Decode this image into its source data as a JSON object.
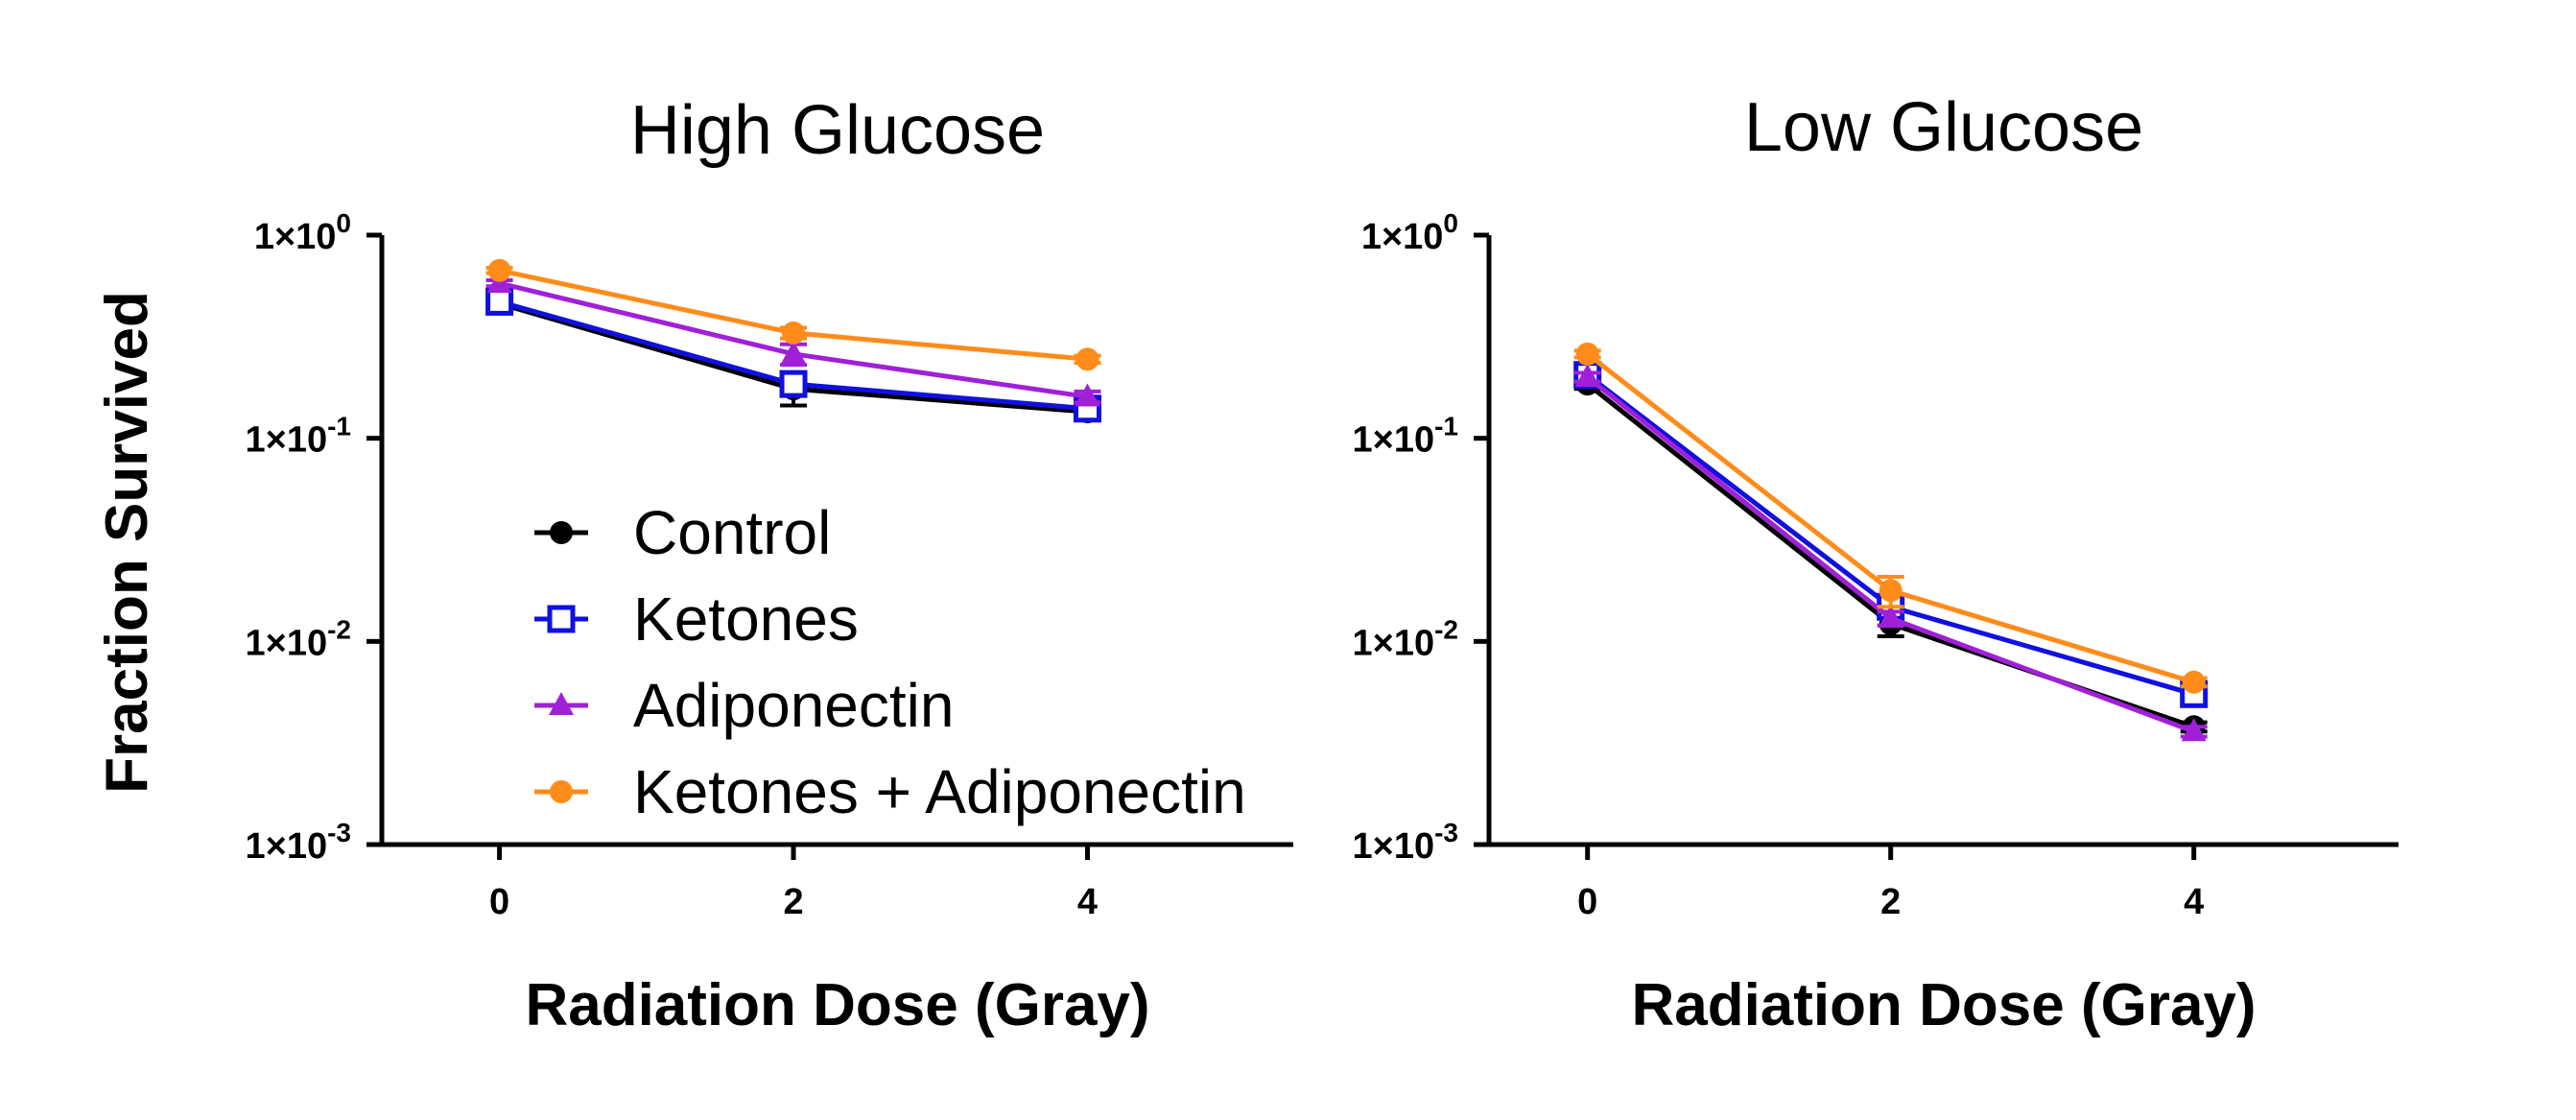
{
  "chart_data": [
    {
      "type": "line",
      "title": "High Glucose",
      "xlabel": "Radiation Dose  (Gray)",
      "ylabel": "Fraction Survived",
      "yscale": "log",
      "ylim": [
        0.001,
        1
      ],
      "xlim": [
        -0.8,
        5.4
      ],
      "x": [
        0,
        2,
        4
      ],
      "xticks": [
        0,
        2,
        4
      ],
      "ytick_labels": [
        {
          "base": "1×10",
          "exp": "0"
        },
        {
          "base": "1×10",
          "exp": "-1"
        },
        {
          "base": "1×10",
          "exp": "-2"
        },
        {
          "base": "1×10",
          "exp": "-3"
        }
      ],
      "ytick_values": [
        1,
        0.1,
        0.01,
        0.001
      ],
      "legend_placement": "inside-lower",
      "series": [
        {
          "name": "Control",
          "color": "#000000",
          "marker": "circle",
          "values": [
            0.46,
            0.175,
            0.135
          ],
          "err": [
            0.03,
            0.03,
            0.01
          ]
        },
        {
          "name": "Ketones",
          "color": "#1010e0",
          "marker": "open-square",
          "values": [
            0.47,
            0.185,
            0.14
          ],
          "err": [
            0.02,
            0.02,
            0.01
          ]
        },
        {
          "name": "Adiponectin",
          "color": "#a020d8",
          "marker": "triangle",
          "values": [
            0.58,
            0.26,
            0.16
          ],
          "err": [
            0.02,
            0.03,
            0.01
          ]
        },
        {
          "name": "Ketones + Adiponectin",
          "color": "#ff8c1a",
          "marker": "circle",
          "values": [
            0.67,
            0.33,
            0.245
          ],
          "err": [
            0.02,
            0.02,
            0.01
          ]
        }
      ]
    },
    {
      "type": "line",
      "title": "Low Glucose",
      "xlabel": "Radiation Dose  (Gray)",
      "ylabel": "",
      "yscale": "log",
      "ylim": [
        0.001,
        1
      ],
      "xlim": [
        -0.65,
        5.35
      ],
      "x": [
        0,
        2,
        4
      ],
      "xticks": [
        0,
        2,
        4
      ],
      "ytick_labels": [
        {
          "base": "1×10",
          "exp": "0"
        },
        {
          "base": "1×10",
          "exp": "-1"
        },
        {
          "base": "1×10",
          "exp": "-2"
        },
        {
          "base": "1×10",
          "exp": "-3"
        }
      ],
      "ytick_values": [
        1,
        0.1,
        0.01,
        0.001
      ],
      "series": [
        {
          "name": "Control",
          "color": "#000000",
          "marker": "circle",
          "values": [
            0.185,
            0.0122,
            0.0038
          ],
          "err": [
            0.01,
            0.0016,
            0.0002
          ]
        },
        {
          "name": "Ketones",
          "color": "#1010e0",
          "marker": "open-square",
          "values": [
            0.205,
            0.0148,
            0.0055
          ],
          "err": [
            0.01,
            0.001,
            0.0003
          ]
        },
        {
          "name": "Adiponectin",
          "color": "#a020d8",
          "marker": "triangle",
          "values": [
            0.2,
            0.013,
            0.0036
          ],
          "err": [
            0.01,
            0.001,
            0.0002
          ]
        },
        {
          "name": "Ketones + Adiponectin",
          "color": "#ff8c1a",
          "marker": "circle",
          "values": [
            0.26,
            0.0178,
            0.0063
          ],
          "err": [
            0.01,
            0.003,
            0.0003
          ]
        }
      ]
    }
  ]
}
